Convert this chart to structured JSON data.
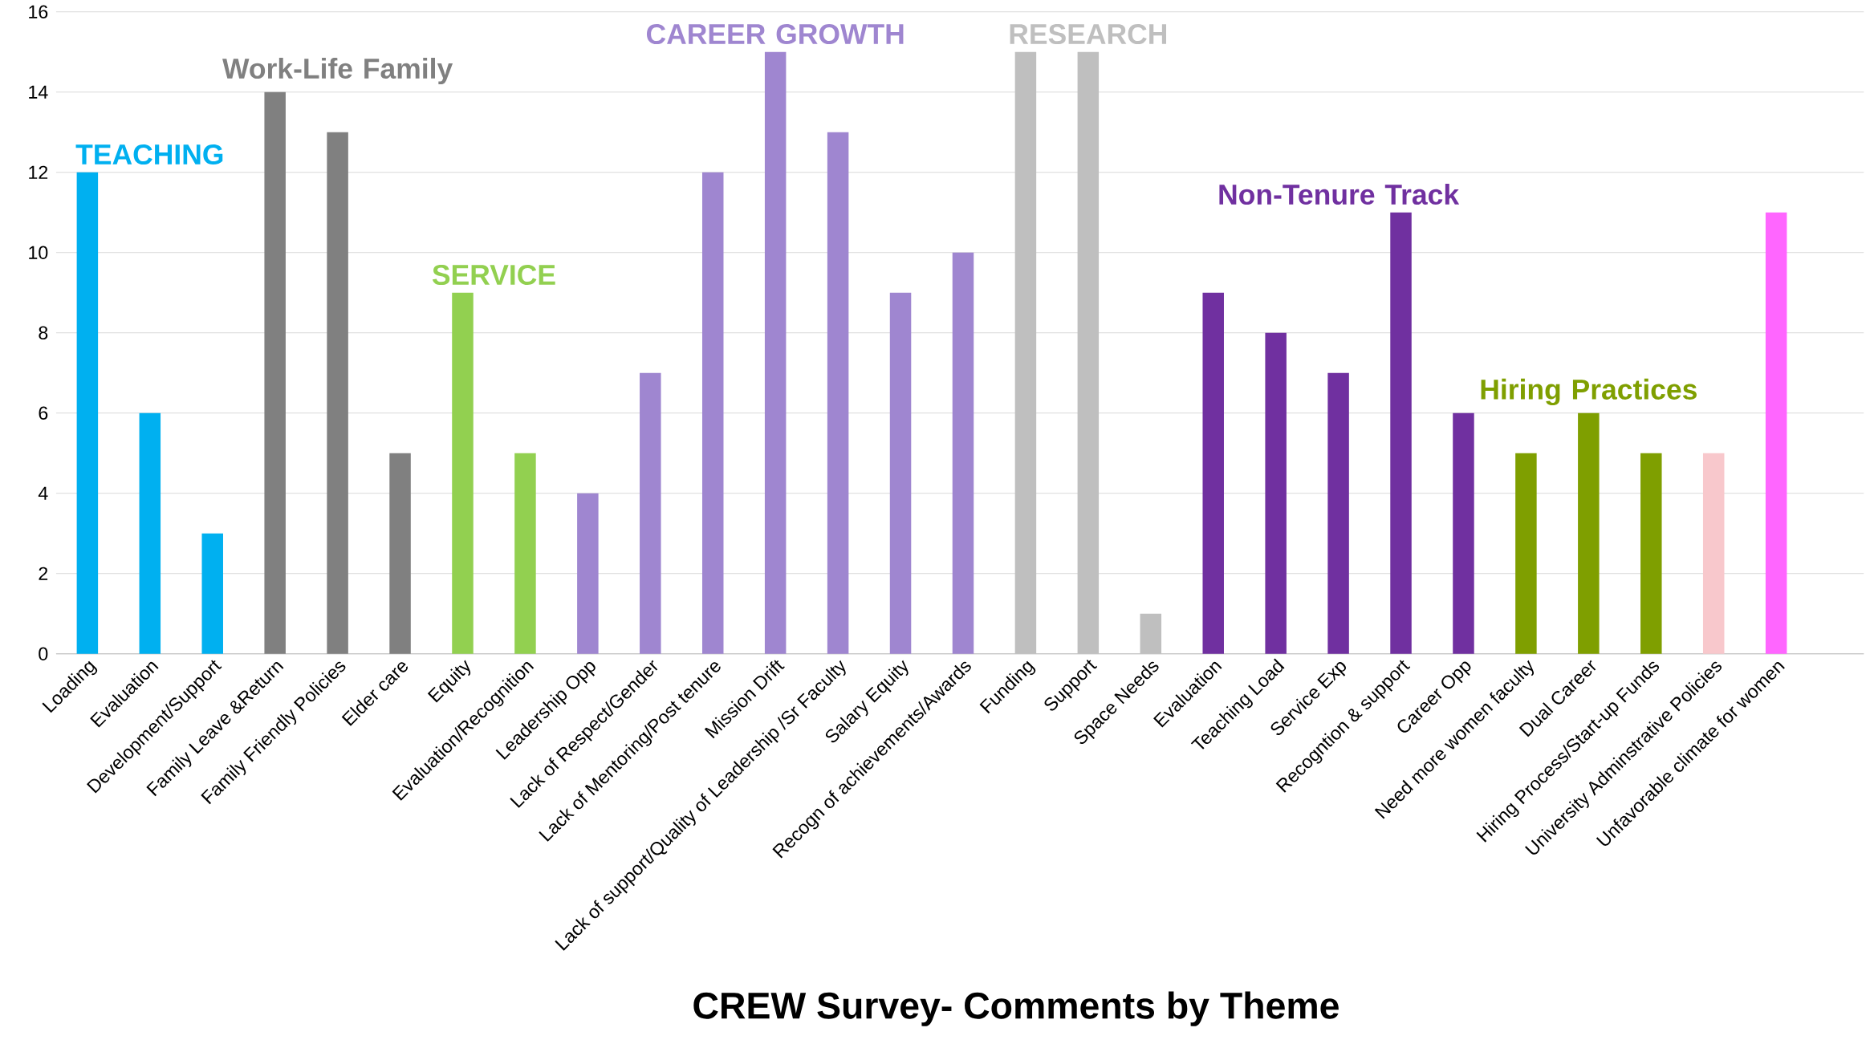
{
  "chart_data": {
    "type": "bar",
    "title": "CREW Survey- Comments by Theme",
    "categories": [
      "Loading",
      "Evaluation",
      "Development/Support",
      "Family Leave &Return",
      "Family Friendly Policies",
      "Elder care",
      "Equity",
      "Evaluation/Recognition",
      "Leadership Opp",
      "Lack of Respect/Gender",
      "Lack of Mentoring/Post tenure",
      "Mission Drift",
      "Lack of support/Quality of Leadership /Sr Faculty",
      "Salary Equity",
      "Recogn of achievements/Awards",
      "Funding",
      "Support",
      "Space Needs",
      "Evaluation",
      "Teaching Load",
      "Service Exp",
      "Recogntion & support",
      "Career Opp",
      "Need more women faculty",
      "Dual Career",
      "Hiring Process/Start-up Funds",
      "University Adminstrative Policies",
      "Unfavorable climate for women"
    ],
    "series": [
      {
        "name": "TEACHING",
        "color": "#00b0f0",
        "values": [
          12,
          6,
          3,
          null,
          null,
          null,
          null,
          null,
          null,
          null,
          null,
          null,
          null,
          null,
          null,
          null,
          null,
          null,
          null,
          null,
          null,
          null,
          null,
          null,
          null,
          null,
          null,
          null
        ]
      },
      {
        "name": "Work-Life Family",
        "color": "#808080",
        "values": [
          null,
          null,
          null,
          14,
          13,
          5,
          null,
          null,
          null,
          null,
          null,
          null,
          null,
          null,
          null,
          null,
          null,
          null,
          null,
          null,
          null,
          null,
          null,
          null,
          null,
          null,
          null,
          null
        ]
      },
      {
        "name": "SERVICE",
        "color": "#92d050",
        "values": [
          null,
          null,
          null,
          null,
          null,
          null,
          9,
          5,
          null,
          null,
          null,
          null,
          null,
          null,
          null,
          null,
          null,
          null,
          null,
          null,
          null,
          null,
          null,
          null,
          null,
          null,
          null,
          null
        ]
      },
      {
        "name": "CAREER GROWTH",
        "color": "#9f86d0",
        "values": [
          null,
          null,
          null,
          null,
          null,
          null,
          null,
          null,
          4,
          7,
          12,
          15,
          13,
          9,
          10,
          null,
          null,
          null,
          null,
          null,
          null,
          null,
          null,
          null,
          null,
          null,
          null,
          null
        ]
      },
      {
        "name": "RESEARCH",
        "color": "#bfbfbf",
        "values": [
          null,
          null,
          null,
          null,
          null,
          null,
          null,
          null,
          null,
          null,
          null,
          null,
          null,
          null,
          null,
          15,
          15,
          1,
          null,
          null,
          null,
          null,
          null,
          null,
          null,
          null,
          null,
          null
        ]
      },
      {
        "name": "Non-Tenure Track",
        "color": "#7030a0",
        "values": [
          null,
          null,
          null,
          null,
          null,
          null,
          null,
          null,
          null,
          null,
          null,
          null,
          null,
          null,
          null,
          null,
          null,
          null,
          9,
          8,
          7,
          11,
          6,
          null,
          null,
          null,
          null,
          null
        ]
      },
      {
        "name": "Hiring Practices",
        "color": "#7f9f00",
        "values": [
          null,
          null,
          null,
          null,
          null,
          null,
          null,
          null,
          null,
          null,
          null,
          null,
          null,
          null,
          null,
          null,
          null,
          null,
          null,
          null,
          null,
          null,
          null,
          5,
          6,
          5,
          null,
          null
        ]
      },
      {
        "color": "#f8c8cc",
        "values": [
          null,
          null,
          null,
          null,
          null,
          null,
          null,
          null,
          null,
          null,
          null,
          null,
          null,
          null,
          null,
          null,
          null,
          null,
          null,
          null,
          null,
          null,
          null,
          null,
          null,
          null,
          5,
          null
        ]
      },
      {
        "color": "#ff66ff",
        "values": [
          null,
          null,
          null,
          null,
          null,
          null,
          null,
          null,
          null,
          null,
          null,
          null,
          null,
          null,
          null,
          null,
          null,
          null,
          null,
          null,
          null,
          null,
          null,
          null,
          null,
          null,
          null,
          11
        ]
      }
    ],
    "ylim": [
      0,
      16
    ],
    "yticks": [
      0,
      2,
      4,
      6,
      8,
      10,
      12,
      14,
      16
    ],
    "grid": "y"
  }
}
